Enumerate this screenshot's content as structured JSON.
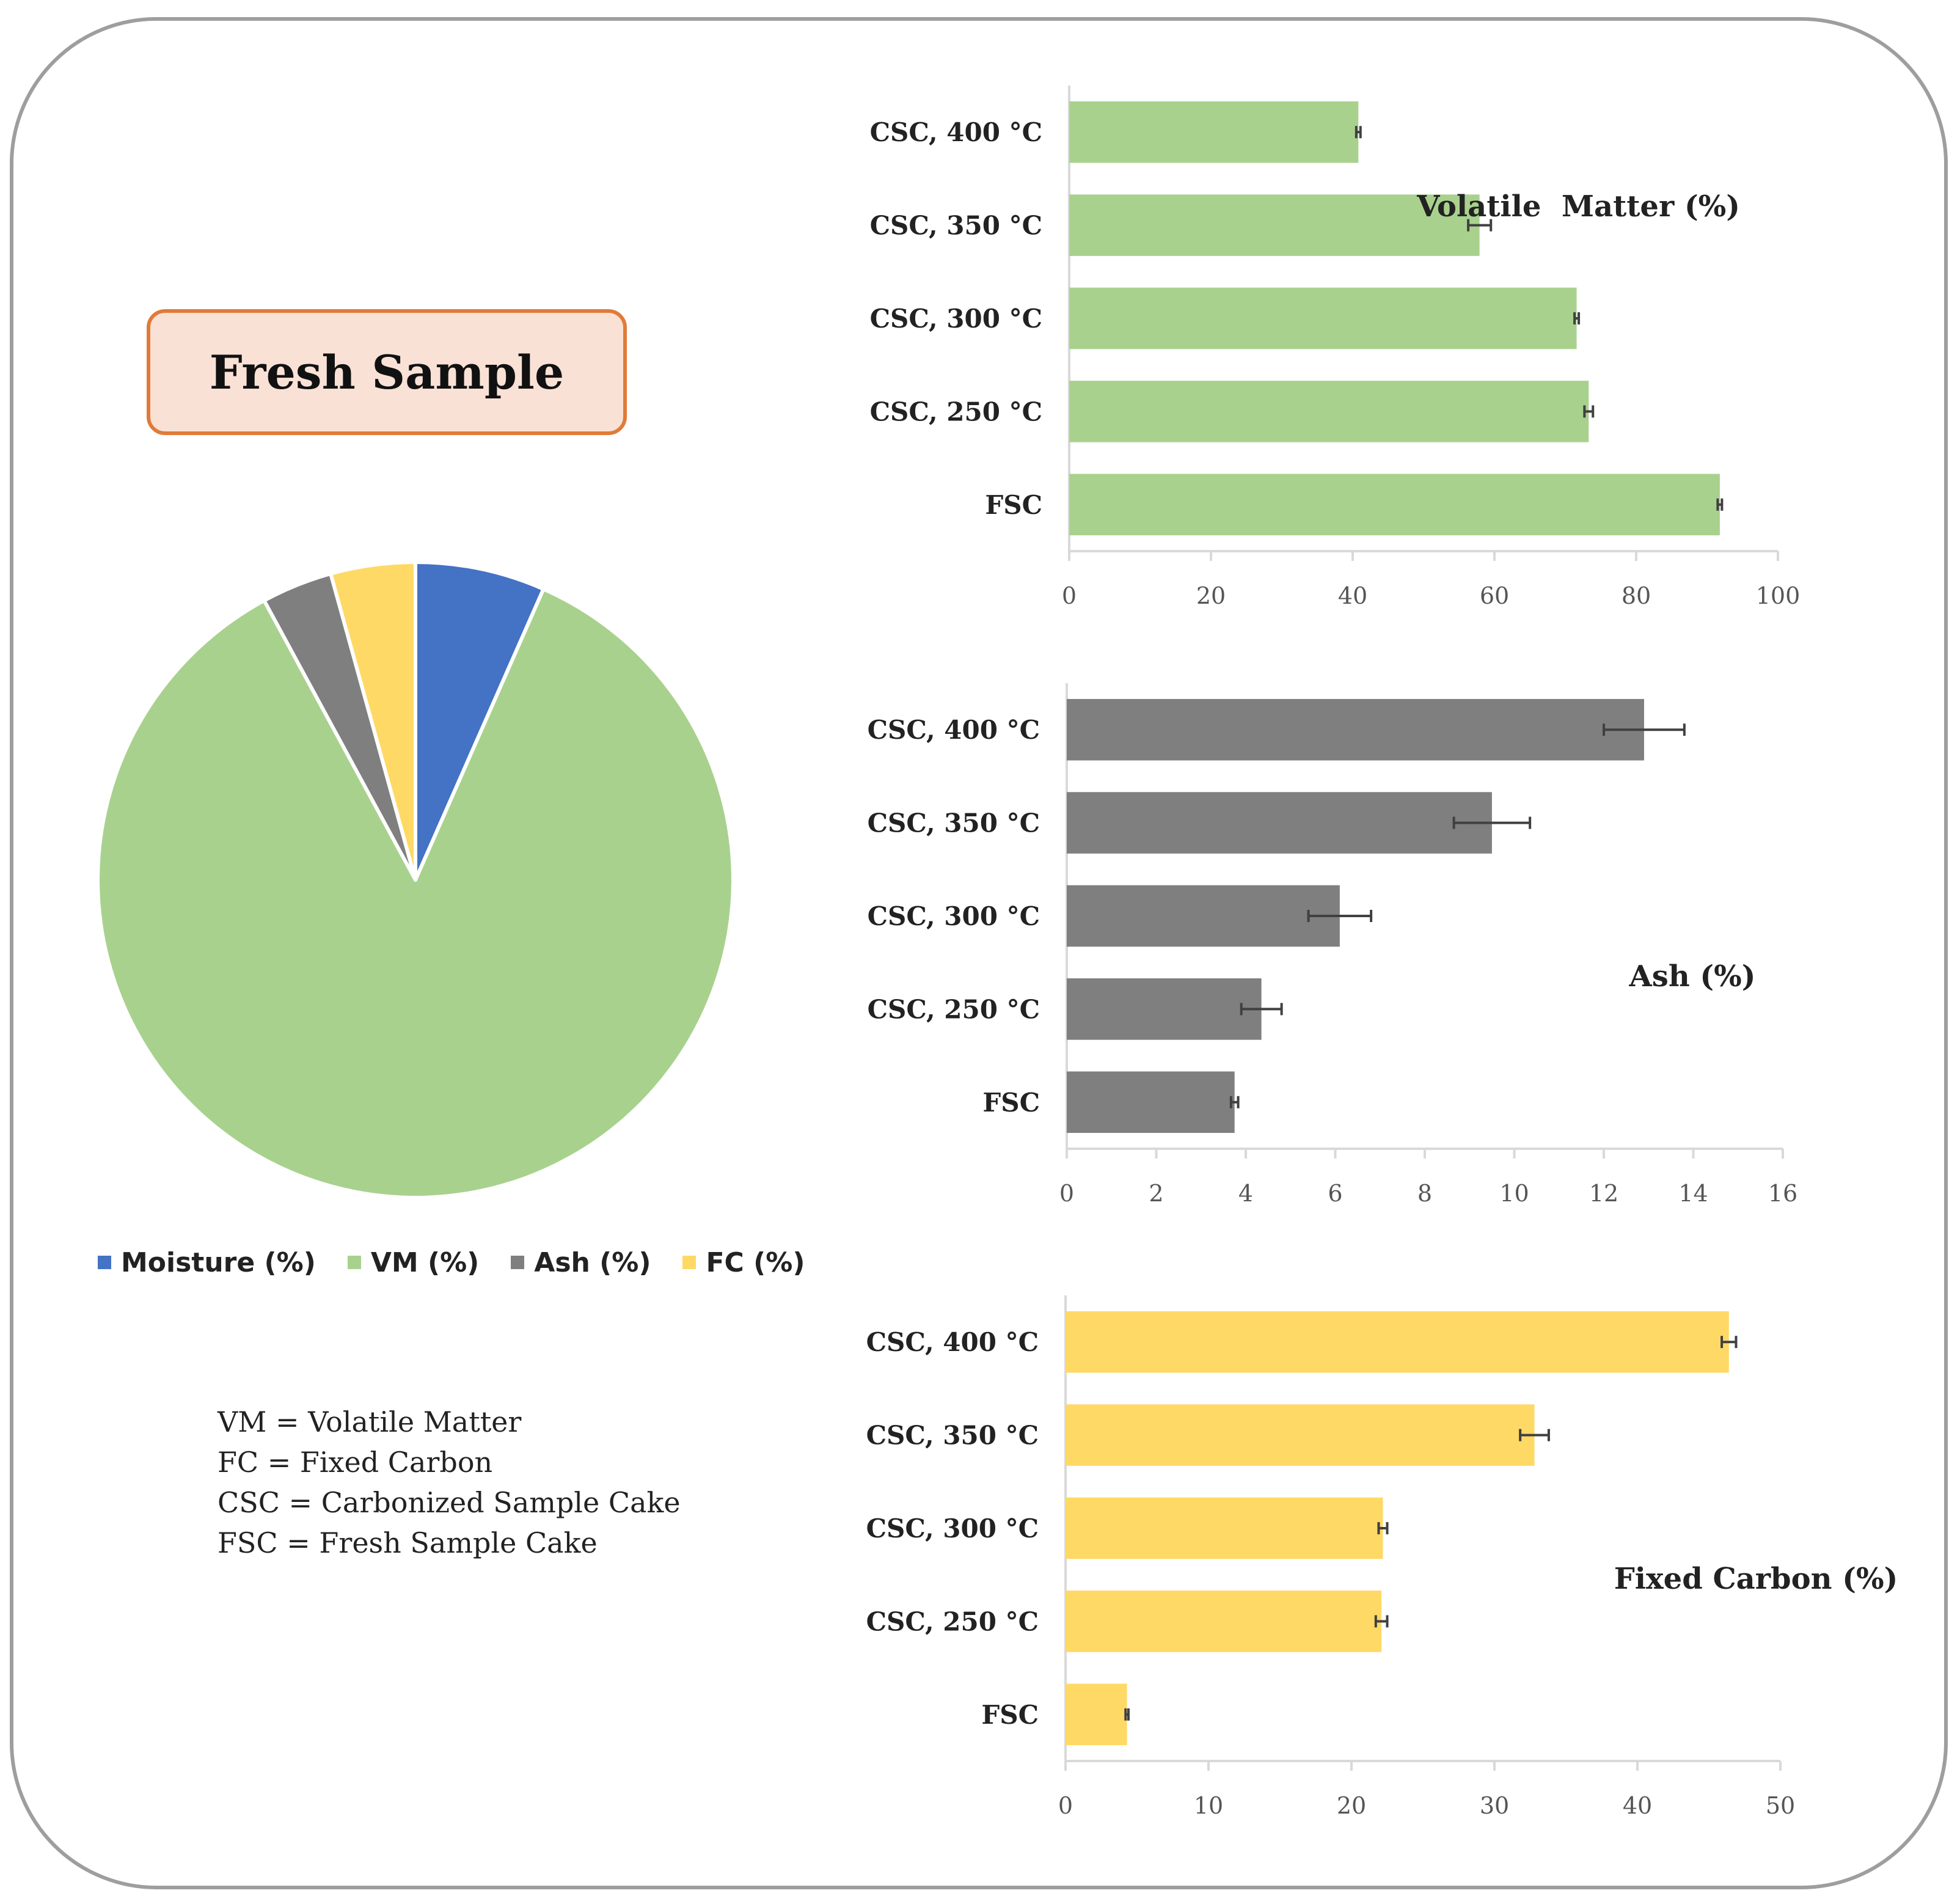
{
  "badge": {
    "label": "Fresh Sample"
  },
  "pie": {
    "slices": [
      {
        "name": "Moisture (%)",
        "value": 6.6,
        "color": "#4472c4"
      },
      {
        "name": "VM (%)",
        "value": 85.5,
        "color": "#a9d18e"
      },
      {
        "name": "Ash (%)",
        "value": 3.6,
        "color": "#7f7f7f"
      },
      {
        "name": "FC (%)",
        "value": 4.3,
        "color": "#ffd966"
      }
    ]
  },
  "legend": {
    "items": [
      {
        "label": "Moisture (%)",
        "color": "#4472c4"
      },
      {
        "label": "VM (%)",
        "color": "#a9d18e"
      },
      {
        "label": "Ash (%)",
        "color": "#7f7f7f"
      },
      {
        "label": "FC (%)",
        "color": "#ffd966"
      }
    ]
  },
  "definitions": [
    "VM = Volatile Matter",
    "FC = Fixed Carbon",
    "CSC = Carbonized Sample Cake",
    "FSC = Fresh Sample Cake"
  ],
  "chart_data": [
    {
      "type": "bar",
      "orientation": "horizontal",
      "title": "Volatile  Matter (%)",
      "categories": [
        "CSC, 400 °C",
        "CSC, 350 °C",
        "CSC, 300 °C",
        "CSC, 250 °C",
        "FSC"
      ],
      "values": [
        40.8,
        57.9,
        71.6,
        73.3,
        91.8
      ],
      "errors": [
        0.3,
        1.6,
        0.3,
        0.6,
        0.3
      ],
      "xlim": [
        0,
        100
      ],
      "xticks": [
        "0",
        "20",
        "40",
        "60",
        "80",
        "100"
      ],
      "color": "#a9d18e"
    },
    {
      "type": "bar",
      "orientation": "horizontal",
      "title": "Ash (%)",
      "categories": [
        "CSC, 400 °C",
        "CSC, 350 °C",
        "CSC, 300 °C",
        "CSC, 250 °C",
        "FSC"
      ],
      "values": [
        12.9,
        9.5,
        6.1,
        4.35,
        3.75
      ],
      "errors": [
        0.9,
        0.85,
        0.7,
        0.45,
        0.08
      ],
      "xlim": [
        0,
        16
      ],
      "xticks": [
        "0",
        "2",
        "4",
        "6",
        "8",
        "10",
        "12",
        "14",
        "16"
      ],
      "color": "#7f7f7f"
    },
    {
      "type": "bar",
      "orientation": "horizontal",
      "title": "Fixed Carbon (%)",
      "categories": [
        "CSC, 400 °C",
        "CSC, 350 °C",
        "CSC, 300 °C",
        "CSC, 250 °C",
        "FSC"
      ],
      "values": [
        46.4,
        32.8,
        22.2,
        22.1,
        4.3
      ],
      "errors": [
        0.5,
        1.0,
        0.3,
        0.4,
        0.1
      ],
      "xlim": [
        0,
        50
      ],
      "xticks": [
        "0",
        "10",
        "20",
        "30",
        "40",
        "50"
      ],
      "color": "#ffd966"
    }
  ]
}
